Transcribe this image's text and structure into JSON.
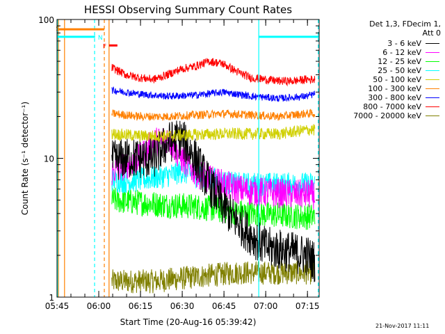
{
  "chart_data": {
    "type": "line",
    "title": "HESSI Observing Summary Count Rates",
    "xlabel": "Start Time (20-Aug-16 05:39:42)",
    "ylabel": "Count Rate (s⁻¹ detector⁻¹)",
    "y_scale": "log",
    "ylim": [
      1,
      100
    ],
    "xlim_minutes": [
      5.3,
      99.5
    ],
    "x_ticks": [
      "05:45",
      "06:00",
      "06:15",
      "06:30",
      "06:45",
      "07:00",
      "07:15"
    ],
    "y_ticks": [
      "1",
      "10",
      "100"
    ],
    "legend_header": [
      "Det 1,3, FDecim 1,",
      "Att 0"
    ],
    "legend_position": "right",
    "series": [
      {
        "name": "3 - 6 keV",
        "color": "#000000",
        "x": [
          25,
          30,
          40,
          45,
          50,
          55,
          60,
          65,
          70,
          75,
          80,
          85,
          90,
          95,
          98
        ],
        "values": [
          9.5,
          10,
          10,
          13,
          14,
          10,
          6.5,
          4.5,
          3.5,
          2.8,
          2.3,
          2.2,
          2.1,
          2.0,
          1.8
        ]
      },
      {
        "name": "6 - 12 keV",
        "color": "#ff00ff",
        "x": [
          25,
          30,
          35,
          40,
          45,
          50,
          55,
          60,
          65,
          70,
          75,
          80,
          85,
          90,
          95,
          98
        ],
        "values": [
          8,
          9,
          10,
          13,
          14,
          10,
          8,
          7,
          6.5,
          6.0,
          5.8,
          5.7,
          5.6,
          5.5,
          5.5,
          5.5
        ]
      },
      {
        "name": "12 - 25 keV",
        "color": "#00ff00",
        "x": [
          25,
          35,
          45,
          55,
          65,
          75,
          85,
          95,
          98
        ],
        "values": [
          5,
          4.8,
          4.6,
          4.5,
          4.2,
          4.0,
          3.9,
          3.8,
          3.8
        ]
      },
      {
        "name": "25 - 50 keV",
        "color": "#00ffff",
        "x": [
          25,
          30,
          35,
          40,
          45,
          50,
          55,
          60,
          70,
          80,
          90,
          98
        ],
        "values": [
          7,
          6.8,
          7,
          7.2,
          7.5,
          8,
          7.5,
          7.2,
          6.5,
          6.5,
          6.5,
          6.5
        ]
      },
      {
        "name": "50 - 100 keV",
        "color": "#d0d000",
        "x": [
          25,
          35,
          45,
          55,
          65,
          75,
          85,
          95,
          98
        ],
        "values": [
          15,
          14.5,
          14.5,
          14.8,
          15,
          15,
          15,
          16,
          16
        ]
      },
      {
        "name": "100 - 300 keV",
        "color": "#ff8000",
        "x": [
          25,
          35,
          45,
          55,
          65,
          75,
          85,
          95,
          98
        ],
        "values": [
          21,
          20,
          20,
          20.5,
          21,
          20.5,
          20,
          21,
          21
        ]
      },
      {
        "name": "300 - 800 keV",
        "color": "#0000ff",
        "x": [
          25,
          35,
          45,
          55,
          65,
          75,
          85,
          95,
          98
        ],
        "values": [
          31,
          29,
          28,
          28.5,
          30,
          28,
          27,
          28,
          29
        ]
      },
      {
        "name": "800 - 7000 keV",
        "color": "#ff0000",
        "x": [
          25,
          30,
          35,
          40,
          45,
          50,
          55,
          60,
          65,
          70,
          75,
          80,
          85,
          90,
          95,
          98
        ],
        "values": [
          45,
          40,
          38,
          37,
          40,
          44,
          46,
          50,
          48,
          42,
          38,
          37,
          36,
          36,
          37,
          37
        ]
      },
      {
        "name": "7000 - 20000 keV",
        "color": "#808000",
        "x": [
          25,
          40,
          55,
          70,
          85,
          98
        ],
        "values": [
          1.3,
          1.3,
          1.4,
          1.5,
          1.5,
          1.5
        ]
      }
    ],
    "flag_bars": [
      {
        "label": "S",
        "color": "#ff8000",
        "x_start": 5.6,
        "x_end": 22.3,
        "y": 85
      },
      {
        "label": "N",
        "color": "#00ffff",
        "x_start": 5.3,
        "x_end": 19.0,
        "y": 75
      },
      {
        "label": "N",
        "color": "#00ffff",
        "x_start": 77.8,
        "x_end": 99.5,
        "y": 75
      },
      {
        "label": "F",
        "color": "#ff0000",
        "x_start": 24.0,
        "x_end": 27.0,
        "y": 65
      }
    ],
    "markers": [
      {
        "color": "#ff8000",
        "x": 5.8,
        "style": "solid"
      },
      {
        "color": "#ff8000",
        "x": 8.0,
        "style": "solid"
      },
      {
        "color": "#00ffff",
        "x": 5.5,
        "style": "solid"
      },
      {
        "color": "#00ffff",
        "x": 18.8,
        "style": "dashed"
      },
      {
        "color": "#ff8000",
        "x": 22.3,
        "style": "dashed"
      },
      {
        "color": "#ff8000",
        "x": 24.0,
        "style": "solid"
      },
      {
        "color": "#00ffff",
        "x": 77.8,
        "style": "solid"
      },
      {
        "color": "#00ffff",
        "x": 99.2,
        "style": "dashed"
      }
    ],
    "annotations": [
      "S",
      "N",
      "F"
    ]
  },
  "timestamp": "21-Nov-2017 11:11"
}
